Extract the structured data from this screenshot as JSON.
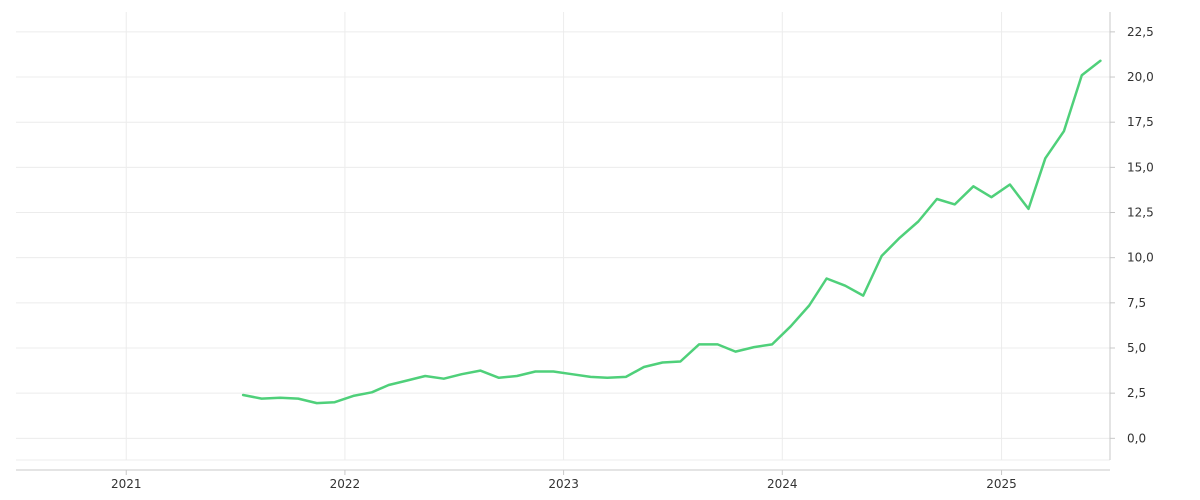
{
  "chart_data": {
    "type": "line",
    "title": "",
    "xlabel": "",
    "ylabel": "",
    "x_ticks": [
      "2021",
      "2022",
      "2023",
      "2024",
      "2025"
    ],
    "y_ticks": [
      "0,0",
      "2,5",
      "5,0",
      "7,5",
      "10,0",
      "12,5",
      "15,0",
      "17,5",
      "20,0",
      "22,5"
    ],
    "y_tick_values": [
      0,
      2.5,
      5,
      7.5,
      10,
      12.5,
      15,
      17.5,
      20,
      22.5
    ],
    "ylim": [
      -1.2,
      23.6
    ],
    "xlim": [
      "2020-07-01",
      "2025-07-01"
    ],
    "grid": true,
    "legend": "none",
    "line_color": "#4fd07a",
    "series": [
      {
        "x": [
          "2021-07",
          "2021-08",
          "2021-09",
          "2021-10",
          "2021-11",
          "2021-12",
          "2022-01",
          "2022-02",
          "2022-03",
          "2022-04",
          "2022-05",
          "2022-06",
          "2022-07",
          "2022-08",
          "2022-09",
          "2022-10",
          "2022-11",
          "2022-12",
          "2023-01",
          "2023-02",
          "2023-03",
          "2023-04",
          "2023-05",
          "2023-06",
          "2023-07",
          "2023-08",
          "2023-09",
          "2023-10",
          "2023-11",
          "2023-12",
          "2024-01",
          "2024-02",
          "2024-03",
          "2024-04",
          "2024-05",
          "2024-06",
          "2024-07",
          "2024-08",
          "2024-09",
          "2024-10",
          "2024-11",
          "2024-12",
          "2025-01",
          "2025-02",
          "2025-03",
          "2025-04",
          "2025-05",
          "2025-06"
        ],
        "values": [
          2.4,
          2.2,
          2.25,
          2.2,
          1.95,
          2.0,
          2.35,
          2.55,
          2.95,
          3.2,
          3.45,
          3.3,
          3.55,
          3.75,
          3.35,
          3.45,
          3.7,
          3.7,
          3.55,
          3.4,
          3.35,
          3.4,
          3.95,
          4.2,
          4.25,
          5.2,
          5.2,
          4.8,
          5.05,
          5.2,
          6.2,
          7.35,
          8.85,
          8.45,
          7.9,
          10.1,
          11.1,
          12.0,
          13.25,
          12.95,
          13.95,
          13.35,
          14.05,
          12.7,
          15.5,
          17.0,
          20.1,
          20.9
        ]
      }
    ]
  }
}
